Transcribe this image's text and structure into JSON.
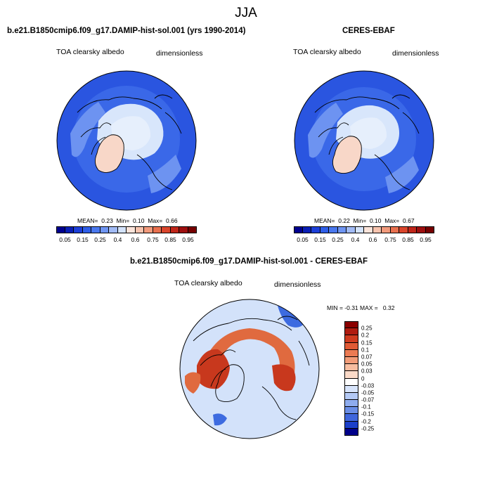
{
  "title": "JJA",
  "panels": [
    {
      "id": "model",
      "heading": "b.e21.B1850cmip6.f09_g17.DAMIP-hist-sol.001 (yrs 1990-2014)",
      "variable": "TOA clearsky albedo",
      "units": "dimensionless",
      "stats": {
        "mean_label": "MEAN=",
        "mean": "0.23",
        "min_label": "Min=",
        "min": "0.10",
        "max_label": "Max=",
        "max": "0.66"
      }
    },
    {
      "id": "obs",
      "heading": "CERES-EBAF",
      "variable": "TOA clearsky albedo",
      "units": "dimensionless",
      "stats": {
        "mean_label": "MEAN=",
        "mean": "0.22",
        "min_label": "Min=",
        "min": "0.10",
        "max_label": "Max=",
        "max": "0.67"
      }
    },
    {
      "id": "diff",
      "heading": "b.e21.B1850cmip6.f09_g17.DAMIP-hist-sol.001 - CERES-EBAF",
      "variable": "TOA clearsky albedo",
      "units": "dimensionless",
      "stats": {
        "min_label": "MIN =",
        "min": "-0.31",
        "max_label": "MAX =",
        "max": "0.32"
      }
    }
  ],
  "colorbar_abs": {
    "labels": [
      "0.05",
      "0.15",
      "0.25",
      "0.4",
      "0.6",
      "0.75",
      "0.85",
      "0.95"
    ],
    "colors": [
      "#00008f",
      "#0a1fb4",
      "#1d3fd8",
      "#2f5ee8",
      "#4a78ee",
      "#6f95f2",
      "#a2bbf5",
      "#d4e3fb",
      "#fbe4da",
      "#f7c3ae",
      "#f19a7c",
      "#e8704f",
      "#d9452c",
      "#c0261a",
      "#9e0f0f",
      "#760000"
    ]
  },
  "colorbar_diff": {
    "labels": [
      "0.25",
      "0.2",
      "0.15",
      "0.1",
      "0.07",
      "0.05",
      "0.03",
      "0",
      "-0.03",
      "-0.05",
      "-0.07",
      "-0.1",
      "-0.15",
      "-0.2",
      "-0.25"
    ],
    "colors": [
      "#8b0000",
      "#b01c10",
      "#cf3b1f",
      "#e05a35",
      "#ec7b53",
      "#f29c78",
      "#f7bda0",
      "#fbdac8",
      "#ffffff",
      "#d7e4fb",
      "#b3c9f5",
      "#8eacee",
      "#6a8ee6",
      "#3f66dc",
      "#1b3fca",
      "#00008a"
    ]
  },
  "map_colors": {
    "ocean": "#2a55e0",
    "ocean_mid": "#3a68e8",
    "ice": "#d8e6fb",
    "ice_pale": "#e6effc",
    "greenland": "#f8d7c8",
    "land_low": "#6d93f1",
    "diff_bg": "#d3e2fa",
    "diff_pos": "#e06a3f",
    "diff_strong": "#c8381d",
    "diff_neg": "#3d6be0"
  }
}
